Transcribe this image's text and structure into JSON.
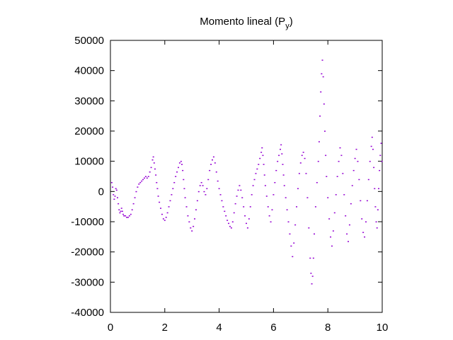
{
  "chart_data": {
    "type": "scatter",
    "title": "Momento lineal (P",
    "title_subscript": "y",
    "title_close": ")",
    "xlabel": "",
    "ylabel": "",
    "xlim": [
      0,
      10
    ],
    "ylim": [
      -40000,
      50000
    ],
    "x_ticks": [
      0,
      2,
      4,
      6,
      8,
      10
    ],
    "y_ticks": [
      -40000,
      -30000,
      -20000,
      -10000,
      0,
      10000,
      20000,
      30000,
      40000,
      50000
    ],
    "grid": false,
    "legend": "none",
    "point_color": "#9400d3",
    "series": [
      {
        "points": [
          [
            0.05,
            3000
          ],
          [
            0.08,
            1500
          ],
          [
            0.11,
            -1000
          ],
          [
            0.14,
            -2500
          ],
          [
            0.17,
            -1500
          ],
          [
            0.2,
            1000
          ],
          [
            0.23,
            500
          ],
          [
            0.26,
            -2000
          ],
          [
            0.29,
            -4000
          ],
          [
            0.32,
            -6000
          ],
          [
            0.35,
            -7000
          ],
          [
            0.38,
            -6500
          ],
          [
            0.41,
            -5500
          ],
          [
            0.44,
            -6500
          ],
          [
            0.47,
            -7500
          ],
          [
            0.5,
            -8000
          ],
          [
            0.55,
            -8000
          ],
          [
            0.6,
            -8500
          ],
          [
            0.65,
            -8500
          ],
          [
            0.7,
            -8000
          ],
          [
            0.75,
            -7500
          ],
          [
            0.8,
            -6000
          ],
          [
            0.85,
            -4000
          ],
          [
            0.9,
            -2000
          ],
          [
            0.95,
            0
          ],
          [
            1.0,
            1500
          ],
          [
            1.05,
            2500
          ],
          [
            1.1,
            3000
          ],
          [
            1.15,
            3500
          ],
          [
            1.2,
            4000
          ],
          [
            1.25,
            4500
          ],
          [
            1.3,
            5000
          ],
          [
            1.35,
            4500
          ],
          [
            1.4,
            5000
          ],
          [
            1.45,
            6500
          ],
          [
            1.5,
            8000
          ],
          [
            1.55,
            10500
          ],
          [
            1.58,
            11500
          ],
          [
            1.61,
            9500
          ],
          [
            1.64,
            7500
          ],
          [
            1.67,
            5500
          ],
          [
            1.7,
            3000
          ],
          [
            1.73,
            1000
          ],
          [
            1.76,
            -1500
          ],
          [
            1.8,
            -3500
          ],
          [
            1.85,
            -5500
          ],
          [
            1.9,
            -7500
          ],
          [
            1.95,
            -9000
          ],
          [
            2.0,
            -9500
          ],
          [
            2.05,
            -8500
          ],
          [
            2.1,
            -7000
          ],
          [
            2.15,
            -5000
          ],
          [
            2.2,
            -3000
          ],
          [
            2.25,
            -1000
          ],
          [
            2.3,
            1000
          ],
          [
            2.35,
            3000
          ],
          [
            2.4,
            5000
          ],
          [
            2.45,
            6500
          ],
          [
            2.5,
            8000
          ],
          [
            2.55,
            9500
          ],
          [
            2.6,
            10000
          ],
          [
            2.63,
            9000
          ],
          [
            2.66,
            7000
          ],
          [
            2.69,
            4000
          ],
          [
            2.72,
            1000
          ],
          [
            2.75,
            -2000
          ],
          [
            2.8,
            -5000
          ],
          [
            2.85,
            -8000
          ],
          [
            2.9,
            -10000
          ],
          [
            2.95,
            -12000
          ],
          [
            3.0,
            -13000
          ],
          [
            3.05,
            -11500
          ],
          [
            3.1,
            -9000
          ],
          [
            3.15,
            -6000
          ],
          [
            3.2,
            -3000
          ],
          [
            3.25,
            0
          ],
          [
            3.3,
            2000
          ],
          [
            3.35,
            3000
          ],
          [
            3.4,
            2000
          ],
          [
            3.45,
            0
          ],
          [
            3.5,
            -1000
          ],
          [
            3.55,
            1000
          ],
          [
            3.6,
            4000
          ],
          [
            3.65,
            7000
          ],
          [
            3.7,
            9000
          ],
          [
            3.75,
            10500
          ],
          [
            3.8,
            11500
          ],
          [
            3.85,
            9500
          ],
          [
            3.9,
            6500
          ],
          [
            3.95,
            3500
          ],
          [
            4.0,
            1000
          ],
          [
            4.05,
            -1000
          ],
          [
            4.1,
            -3000
          ],
          [
            4.15,
            -5000
          ],
          [
            4.2,
            -6500
          ],
          [
            4.25,
            -8000
          ],
          [
            4.3,
            -9500
          ],
          [
            4.35,
            -10500
          ],
          [
            4.4,
            -11500
          ],
          [
            4.45,
            -12000
          ],
          [
            4.5,
            -10000
          ],
          [
            4.55,
            -7000
          ],
          [
            4.6,
            -4000
          ],
          [
            4.65,
            -1500
          ],
          [
            4.7,
            500
          ],
          [
            4.75,
            2000
          ],
          [
            4.8,
            500
          ],
          [
            4.85,
            -2000
          ],
          [
            4.9,
            -5000
          ],
          [
            4.95,
            -8000
          ],
          [
            5.0,
            -10500
          ],
          [
            5.05,
            -12000
          ],
          [
            5.1,
            -9000
          ],
          [
            5.15,
            -5000
          ],
          [
            5.2,
            -1000
          ],
          [
            5.25,
            2000
          ],
          [
            5.3,
            4000
          ],
          [
            5.35,
            6000
          ],
          [
            5.4,
            7500
          ],
          [
            5.45,
            9000
          ],
          [
            5.5,
            11000
          ],
          [
            5.55,
            13000
          ],
          [
            5.58,
            14500
          ],
          [
            5.61,
            12000
          ],
          [
            5.64,
            9000
          ],
          [
            5.67,
            5500
          ],
          [
            5.7,
            2000
          ],
          [
            5.75,
            -1500
          ],
          [
            5.8,
            -5000
          ],
          [
            5.85,
            -8000
          ],
          [
            5.9,
            -10000
          ],
          [
            5.95,
            -6000
          ],
          [
            6.0,
            -1000
          ],
          [
            6.05,
            3000
          ],
          [
            6.1,
            7000
          ],
          [
            6.15,
            10000
          ],
          [
            6.2,
            12000
          ],
          [
            6.25,
            14000
          ],
          [
            6.28,
            15500
          ],
          [
            6.31,
            12500
          ],
          [
            6.34,
            9000
          ],
          [
            6.37,
            5500
          ],
          [
            6.4,
            2000
          ],
          [
            6.45,
            -2000
          ],
          [
            6.5,
            -6000
          ],
          [
            6.55,
            -10000
          ],
          [
            6.6,
            -14000
          ],
          [
            6.65,
            -18000
          ],
          [
            6.7,
            -21500
          ],
          [
            6.75,
            -17000
          ],
          [
            6.8,
            -11000
          ],
          [
            6.85,
            -5000
          ],
          [
            6.9,
            1000
          ],
          [
            6.95,
            6000
          ],
          [
            7.0,
            9500
          ],
          [
            7.05,
            12000
          ],
          [
            7.1,
            13000
          ],
          [
            7.15,
            11000
          ],
          [
            7.2,
            6000
          ],
          [
            7.25,
            -2000
          ],
          [
            7.3,
            -12000
          ],
          [
            7.35,
            -22000
          ],
          [
            7.38,
            -27000
          ],
          [
            7.41,
            -30500
          ],
          [
            7.44,
            -28000
          ],
          [
            7.47,
            -22000
          ],
          [
            7.5,
            -14000
          ],
          [
            7.55,
            -5000
          ],
          [
            7.6,
            3000
          ],
          [
            7.65,
            10000
          ],
          [
            7.68,
            16500
          ],
          [
            7.71,
            25000
          ],
          [
            7.74,
            33000
          ],
          [
            7.77,
            39000
          ],
          [
            7.8,
            43500
          ],
          [
            7.83,
            38000
          ],
          [
            7.86,
            29000
          ],
          [
            7.89,
            20000
          ],
          [
            7.92,
            12000
          ],
          [
            7.95,
            5000
          ],
          [
            8.0,
            -2000
          ],
          [
            8.05,
            -9000
          ],
          [
            8.1,
            -15000
          ],
          [
            8.15,
            -18000
          ],
          [
            8.2,
            -13000
          ],
          [
            8.25,
            -7000
          ],
          [
            8.3,
            -1000
          ],
          [
            8.35,
            5000
          ],
          [
            8.4,
            10000
          ],
          [
            8.45,
            14500
          ],
          [
            8.5,
            12000
          ],
          [
            8.55,
            6000
          ],
          [
            8.6,
            -1000
          ],
          [
            8.65,
            -8000
          ],
          [
            8.7,
            -14000
          ],
          [
            8.75,
            -16500
          ],
          [
            8.8,
            -11000
          ],
          [
            8.85,
            -4000
          ],
          [
            8.9,
            2000
          ],
          [
            8.95,
            7000
          ],
          [
            9.0,
            11000
          ],
          [
            9.05,
            14000
          ],
          [
            9.1,
            10000
          ],
          [
            9.15,
            4000
          ],
          [
            9.2,
            -3000
          ],
          [
            9.25,
            -9000
          ],
          [
            9.3,
            -13500
          ],
          [
            9.35,
            -15000
          ],
          [
            9.4,
            -10000
          ],
          [
            9.45,
            -3000
          ],
          [
            9.5,
            4000
          ],
          [
            9.55,
            10000
          ],
          [
            9.6,
            15000
          ],
          [
            9.63,
            18000
          ],
          [
            9.66,
            14000
          ],
          [
            9.69,
            8000
          ],
          [
            9.72,
            1000
          ],
          [
            9.75,
            -5000
          ],
          [
            9.78,
            -10000
          ],
          [
            9.81,
            -12000
          ],
          [
            9.84,
            -6000
          ],
          [
            9.87,
            1000
          ],
          [
            9.9,
            7000
          ],
          [
            9.93,
            12000
          ],
          [
            9.96,
            16000
          ],
          [
            9.99,
            10000
          ]
        ]
      }
    ]
  }
}
